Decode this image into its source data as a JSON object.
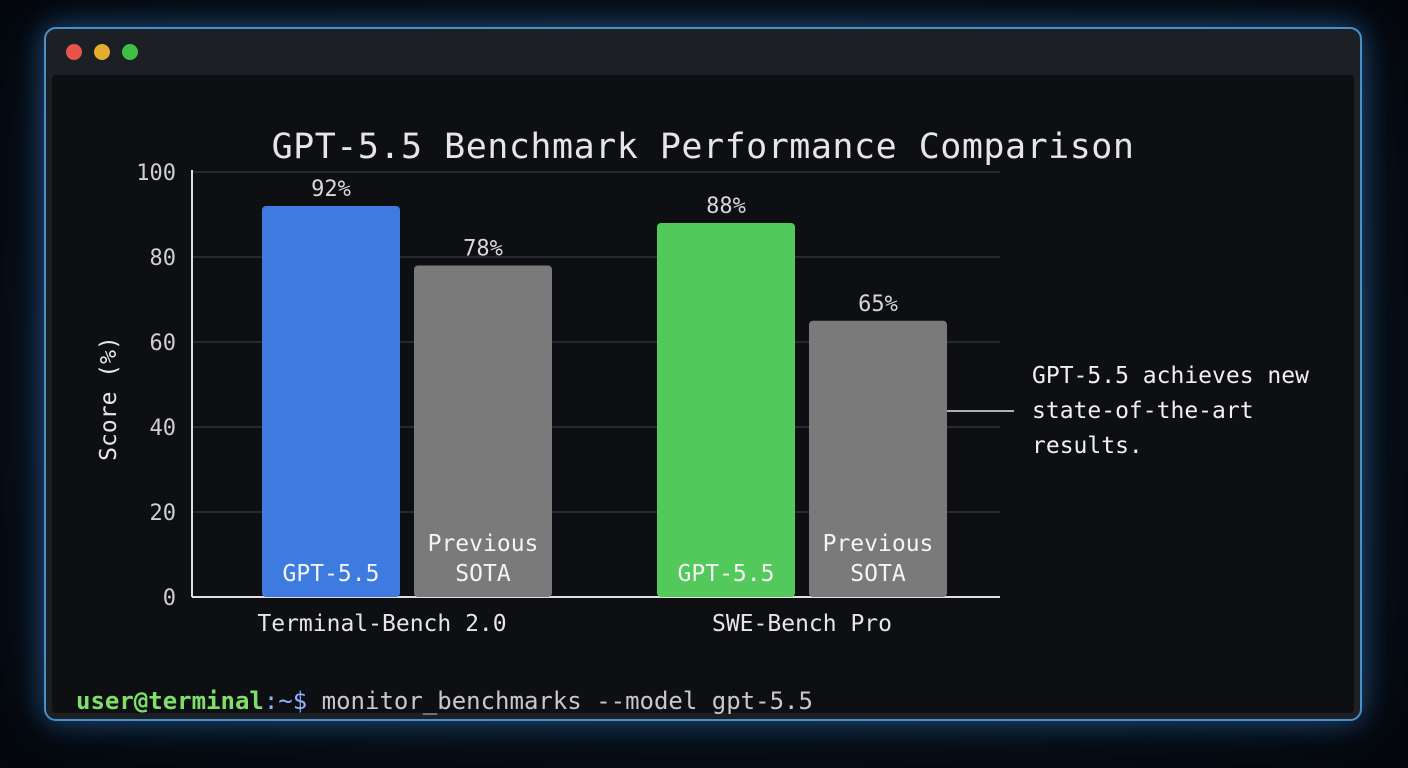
{
  "window": {
    "controls": [
      "close",
      "minimize",
      "maximize"
    ]
  },
  "chart_data": {
    "type": "bar",
    "title": "GPT-5.5 Benchmark Performance Comparison",
    "ylabel": "Score (%)",
    "xlabel": "",
    "ylim": [
      0,
      100
    ],
    "yticks": [
      0,
      20,
      40,
      60,
      80,
      100
    ],
    "grid": true,
    "categories": [
      "Terminal-Bench 2.0",
      "SWE-Bench Pro"
    ],
    "series": [
      {
        "name": "GPT-5.5",
        "values": [
          92,
          88
        ],
        "colors": [
          "#3d7be0",
          "#52c95a"
        ]
      },
      {
        "name": "Previous SOTA",
        "values": [
          78,
          65
        ],
        "colors": [
          "#7a7a7a",
          "#7a7a7a"
        ]
      }
    ],
    "bar_labels": [
      [
        "GPT-5.5",
        "GPT-5.5"
      ],
      [
        "Previous\nSOTA",
        "Previous\nSOTA"
      ]
    ],
    "data_labels": [
      [
        "92%",
        "88%"
      ],
      [
        "78%",
        "65%"
      ]
    ],
    "annotation": "GPT-5.5 achieves new\nstate-of-the-art\nresults."
  },
  "terminal": {
    "user": "user@terminal",
    "separator": ":",
    "path": "~$",
    "command": " monitor_benchmarks --model gpt-5.5"
  },
  "colors": {
    "gpt_terminal": "#3d7be0",
    "gpt_swe": "#52c95a",
    "previous_sota": "#7a7a7a",
    "window_border": "#4a90c8",
    "prompt_user": "#7ee06a",
    "prompt_path": "#8fb4ff"
  }
}
